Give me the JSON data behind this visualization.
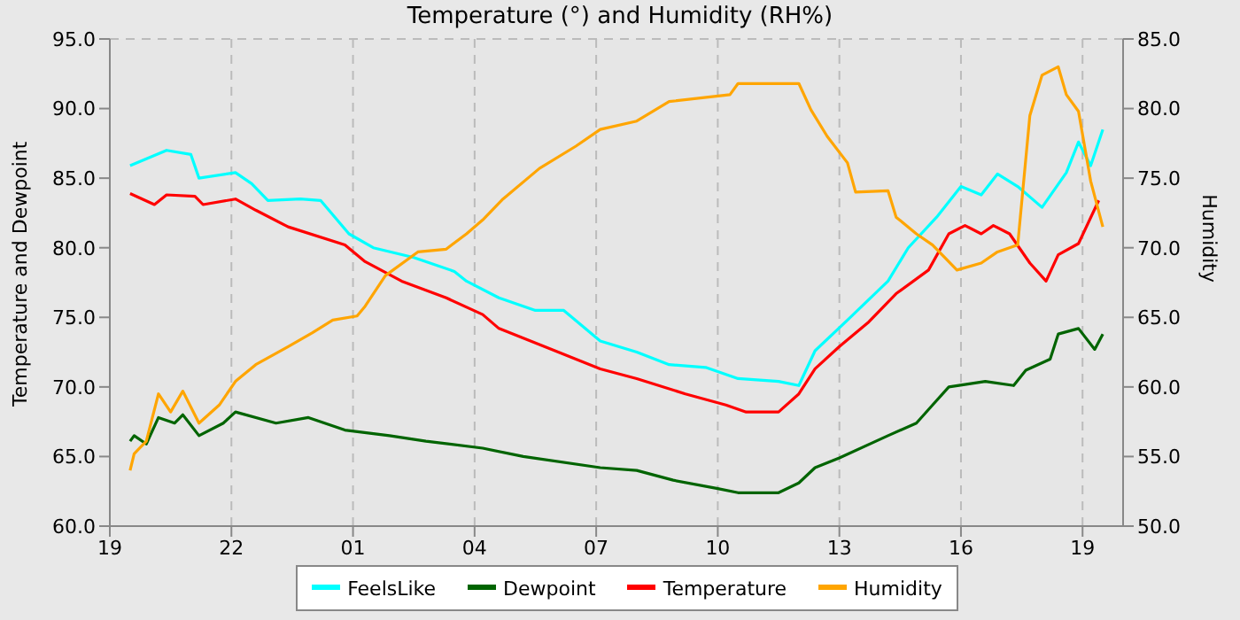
{
  "chart_data": {
    "type": "line",
    "title": "Temperature (°) and Humidity (RH%)",
    "ylabel": "Temperature and Dewpoint",
    "y2label": "Humidity",
    "xlim": [
      "--01-01T19:00",
      "--01-02T20:00"
    ],
    "xticks": [
      {
        "value": "--01-01T19:00",
        "label": "19"
      },
      {
        "value": "--01-01T22:00",
        "label": "22"
      },
      {
        "value": "--01-02T01:00",
        "label": "01"
      },
      {
        "value": "--01-02T04:00",
        "label": "04"
      },
      {
        "value": "--01-02T07:00",
        "label": "07"
      },
      {
        "value": "--01-02T10:00",
        "label": "10"
      },
      {
        "value": "--01-02T13:00",
        "label": "13"
      },
      {
        "value": "--01-02T16:00",
        "label": "16"
      },
      {
        "value": "--01-02T19:00",
        "label": "19"
      }
    ],
    "ylim": [
      60,
      95
    ],
    "yticks": [
      {
        "value": 60,
        "label": "60.0"
      },
      {
        "value": 65,
        "label": "65.0"
      },
      {
        "value": 70,
        "label": "70.0"
      },
      {
        "value": 75,
        "label": "75.0"
      },
      {
        "value": 80,
        "label": "80.0"
      },
      {
        "value": 85,
        "label": "85.0"
      },
      {
        "value": 90,
        "label": "90.0"
      },
      {
        "value": 95,
        "label": "95.0"
      }
    ],
    "y2lim": [
      50,
      85
    ],
    "y2ticks": [
      {
        "value": 50,
        "label": "50.0"
      },
      {
        "value": 55,
        "label": "55.0"
      },
      {
        "value": 60,
        "label": "60.0"
      },
      {
        "value": 65,
        "label": "65.0"
      },
      {
        "value": 70,
        "label": "70.0"
      },
      {
        "value": 75,
        "label": "75.0"
      },
      {
        "value": 80,
        "label": "80.0"
      },
      {
        "value": 85,
        "label": "85.0"
      }
    ],
    "grid": true,
    "legend": "bottom",
    "marker": "none",
    "series": [
      {
        "name": "FeelsLike",
        "color": "#00ffff",
        "x": [
          "--01-01T19:30",
          "--01-01T20:24",
          "--01-01T21:00",
          "--01-01T21:12",
          "--01-01T22:06",
          "--01-01T22:30",
          "--01-01T22:54",
          "--01-01T23:42",
          "--01-02T00:12",
          "--01-02T00:54",
          "--01-02T01:30",
          "--01-02T02:30",
          "--01-02T03:30",
          "--01-02T03:48",
          "--01-02T04:36",
          "--01-02T05:30",
          "--01-02T06:12",
          "--01-02T07:06",
          "--01-02T08:00",
          "--01-02T08:48",
          "--01-02T09:42",
          "--01-02T10:30",
          "--01-02T11:30",
          "--01-02T12:00",
          "--01-02T12:24",
          "--01-02T13:12",
          "--01-02T14:12",
          "--01-02T14:42",
          "--01-02T15:24",
          "--01-02T16:00",
          "--01-02T16:30",
          "--01-02T16:54",
          "--01-02T17:24",
          "--01-02T18:00",
          "--01-02T18:36",
          "--01-02T18:54",
          "--01-02T19:12",
          "--01-02T19:30"
        ],
        "values": [
          85.9,
          87.0,
          86.7,
          85.0,
          85.4,
          84.6,
          83.4,
          83.5,
          83.4,
          81.0,
          80.0,
          79.3,
          78.3,
          77.6,
          76.4,
          75.5,
          75.5,
          73.3,
          72.5,
          71.6,
          71.4,
          70.6,
          70.4,
          70.1,
          72.6,
          74.8,
          77.6,
          80.0,
          82.2,
          84.4,
          83.8,
          85.3,
          84.4,
          82.9,
          85.4,
          87.6,
          85.9,
          88.5
        ]
      },
      {
        "name": "Dewpoint",
        "color": "#006400",
        "x": [
          "--01-01T19:30",
          "--01-01T19:36",
          "--01-01T19:54",
          "--01-01T20:12",
          "--01-01T20:36",
          "--01-01T20:48",
          "--01-01T21:12",
          "--01-01T21:48",
          "--01-01T22:06",
          "--01-01T23:06",
          "--01-01T23:54",
          "--01-02T00:48",
          "--01-02T01:54",
          "--01-02T02:48",
          "--01-02T04:12",
          "--01-02T05:12",
          "--01-02T07:06",
          "--01-02T08:00",
          "--01-02T08:54",
          "--01-02T10:00",
          "--01-02T10:30",
          "--01-02T11:30",
          "--01-02T12:00",
          "--01-02T12:24",
          "--01-02T13:00",
          "--01-02T14:12",
          "--01-02T14:54",
          "--01-02T15:18",
          "--01-02T15:42",
          "--01-02T16:36",
          "--01-02T17:18",
          "--01-02T17:36",
          "--01-02T18:12",
          "--01-02T18:24",
          "--01-02T18:54",
          "--01-02T19:18",
          "--01-02T19:30"
        ],
        "values": [
          66.1,
          66.5,
          65.9,
          67.8,
          67.4,
          68.0,
          66.5,
          67.4,
          68.2,
          67.4,
          67.8,
          66.9,
          66.5,
          66.1,
          65.6,
          65.0,
          64.2,
          64.0,
          63.3,
          62.7,
          62.4,
          62.4,
          63.1,
          64.2,
          64.9,
          66.5,
          67.4,
          68.7,
          70.0,
          70.4,
          70.1,
          71.2,
          72.0,
          73.8,
          74.2,
          72.7,
          73.8
        ]
      },
      {
        "name": "Temperature",
        "color": "#ff0000",
        "x": [
          "--01-01T19:30",
          "--01-01T20:06",
          "--01-01T20:24",
          "--01-01T21:06",
          "--01-01T21:18",
          "--01-01T22:06",
          "--01-01T22:36",
          "--01-01T23:24",
          "--01-02T00:48",
          "--01-02T01:18",
          "--01-02T02:12",
          "--01-02T03:18",
          "--01-02T04:12",
          "--01-02T04:36",
          "--01-02T05:54",
          "--01-02T07:06",
          "--01-02T08:00",
          "--01-02T09:12",
          "--01-02T10:12",
          "--01-02T10:42",
          "--01-02T11:30",
          "--01-02T12:00",
          "--01-02T12:24",
          "--01-02T13:00",
          "--01-02T13:42",
          "--01-02T14:24",
          "--01-02T15:12",
          "--01-02T15:42",
          "--01-02T16:06",
          "--01-02T16:30",
          "--01-02T16:48",
          "--01-02T17:12",
          "--01-02T17:42",
          "--01-02T18:06",
          "--01-02T18:24",
          "--01-02T18:54",
          "--01-02T19:24"
        ],
        "values": [
          83.9,
          83.1,
          83.8,
          83.7,
          83.1,
          83.5,
          82.7,
          81.5,
          80.2,
          79.0,
          77.6,
          76.4,
          75.2,
          74.2,
          72.7,
          71.3,
          70.6,
          69.5,
          68.7,
          68.2,
          68.2,
          69.5,
          71.3,
          72.9,
          74.6,
          76.7,
          78.4,
          81.0,
          81.6,
          81.0,
          81.6,
          81.0,
          78.9,
          77.6,
          79.5,
          80.3,
          83.4
        ]
      },
      {
        "name": "Humidity",
        "color": "#ffa500",
        "axis": "y2",
        "x": [
          "--01-01T19:30",
          "--01-01T19:36",
          "--01-01T19:54",
          "--01-01T20:12",
          "--01-01T20:30",
          "--01-01T20:48",
          "--01-01T21:12",
          "--01-01T21:42",
          "--01-01T22:06",
          "--01-01T22:36",
          "--01-01T23:24",
          "--01-02T00:00",
          "--01-02T00:30",
          "--01-02T01:06",
          "--01-02T01:18",
          "--01-02T01:48",
          "--01-02T02:36",
          "--01-02T03:18",
          "--01-02T03:48",
          "--01-02T04:12",
          "--01-02T04:42",
          "--01-02T05:36",
          "--01-02T06:30",
          "--01-02T07:06",
          "--01-02T08:00",
          "--01-02T08:48",
          "--01-02T10:18",
          "--01-02T10:30",
          "--01-02T12:00",
          "--01-02T12:18",
          "--01-02T12:42",
          "--01-02T13:12",
          "--01-02T13:24",
          "--01-02T14:12",
          "--01-02T14:24",
          "--01-02T14:54",
          "--01-02T15:18",
          "--01-02T15:54",
          "--01-02T16:30",
          "--01-02T16:54",
          "--01-02T17:24",
          "--01-02T17:42",
          "--01-02T18:00",
          "--01-02T18:24",
          "--01-02T18:36",
          "--01-02T18:54",
          "--01-02T19:12",
          "--01-02T19:30"
        ],
        "values": [
          54.0,
          55.2,
          56.1,
          59.5,
          58.2,
          59.7,
          57.4,
          58.7,
          60.4,
          61.6,
          62.9,
          63.9,
          64.8,
          65.1,
          65.8,
          68.0,
          69.7,
          69.9,
          71.0,
          72.0,
          73.5,
          75.7,
          77.3,
          78.5,
          79.1,
          80.5,
          81.0,
          81.8,
          81.8,
          79.9,
          78.0,
          76.1,
          74.0,
          74.1,
          72.2,
          71.0,
          70.2,
          68.4,
          68.9,
          69.7,
          70.2,
          79.5,
          82.4,
          83.0,
          81.0,
          79.8,
          74.8,
          71.5
        ]
      }
    ]
  }
}
